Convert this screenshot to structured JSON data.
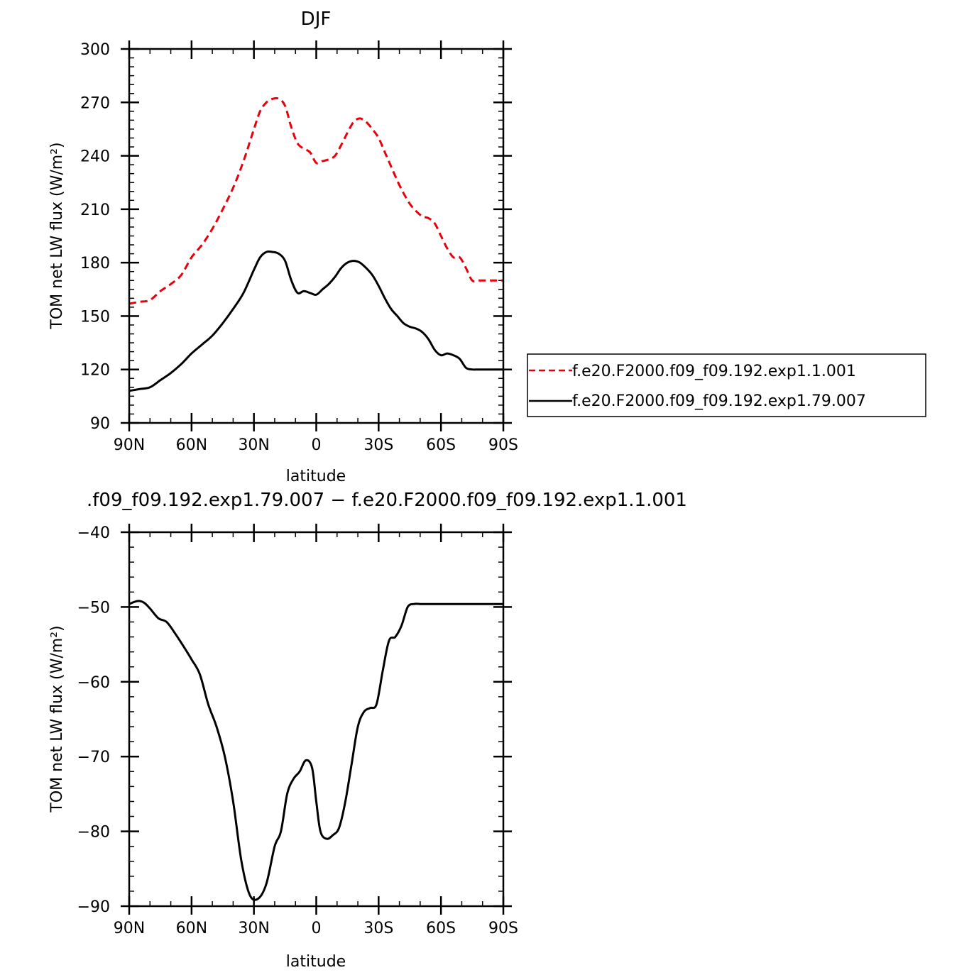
{
  "chart_data": [
    {
      "type": "line",
      "title": "DJF",
      "xlabel": "latitude",
      "ylabel": "TOM net LW flux (W/m²)",
      "xlim": [
        90,
        -90
      ],
      "ylim": [
        90,
        300
      ],
      "x_ticks": [
        90,
        60,
        30,
        0,
        -30,
        -60,
        -90
      ],
      "x_tick_labels": [
        "90N",
        "60N",
        "30N",
        "0",
        "30S",
        "60S",
        "90S"
      ],
      "y_ticks": [
        90,
        120,
        150,
        180,
        210,
        240,
        270,
        300
      ],
      "y_tick_labels": [
        "90",
        "120",
        "150",
        "180",
        "210",
        "240",
        "270",
        "300"
      ],
      "legend_position": "right",
      "series": [
        {
          "name": "f.e20.F2000.f09_f09.192.exp1.1.001",
          "color": "#e8000b",
          "dash": "dashed",
          "x": [
            90,
            85,
            80,
            75,
            70,
            65,
            60,
            55,
            50,
            45,
            40,
            35,
            30,
            27,
            24,
            21,
            18,
            15,
            12,
            9,
            6,
            3,
            0,
            -3,
            -6,
            -9,
            -12,
            -15,
            -18,
            -21,
            -24,
            -27,
            -30,
            -33,
            -36,
            -39,
            -42,
            -45,
            -48,
            -51,
            -54,
            -57,
            -60,
            -63,
            -66,
            -69,
            -72,
            -75,
            -78,
            -81,
            -84,
            -87,
            -90
          ],
          "values": [
            157,
            158,
            159,
            164,
            168,
            173,
            183,
            190,
            199,
            210,
            222,
            237,
            255,
            265,
            270,
            272,
            272,
            268,
            256,
            247,
            244,
            242,
            236,
            237,
            238,
            240,
            246,
            253,
            259,
            261,
            259,
            255,
            250,
            242,
            234,
            226,
            219,
            213,
            209,
            206,
            205,
            202,
            195,
            188,
            183,
            183,
            177,
            170,
            170,
            170,
            170,
            170,
            170
          ]
        },
        {
          "name": "f.e20.F2000.f09_f09.192.exp1.79.007",
          "color": "#000000",
          "dash": "solid",
          "x": [
            90,
            85,
            80,
            75,
            70,
            65,
            60,
            55,
            50,
            45,
            40,
            35,
            30,
            27,
            24,
            21,
            18,
            15,
            12,
            9,
            6,
            3,
            0,
            -3,
            -6,
            -9,
            -12,
            -15,
            -18,
            -21,
            -24,
            -27,
            -30,
            -33,
            -36,
            -39,
            -42,
            -45,
            -48,
            -51,
            -54,
            -57,
            -60,
            -63,
            -66,
            -69,
            -72,
            -75,
            -78,
            -81,
            -84,
            -87,
            -90
          ],
          "values": [
            108,
            109,
            110,
            114,
            118,
            123,
            129,
            134,
            139,
            146,
            154,
            163,
            176,
            183,
            186,
            186,
            185,
            181,
            170,
            163,
            164,
            163,
            162,
            165,
            168,
            172,
            177,
            180,
            181,
            180,
            177,
            173,
            167,
            160,
            154,
            150,
            146,
            144,
            143,
            141,
            137,
            131,
            128,
            129,
            128,
            126,
            121,
            120,
            120,
            120,
            120,
            120,
            120
          ]
        }
      ]
    },
    {
      "type": "line",
      "title": ".f09_f09.192.exp1.79.007 − f.e20.F2000.f09_f09.192.exp1.1.001",
      "xlabel": "latitude",
      "ylabel": "TOM net LW flux (W/m²)",
      "xlim": [
        90,
        -90
      ],
      "ylim": [
        -90,
        -40
      ],
      "x_ticks": [
        90,
        60,
        30,
        0,
        -30,
        -60,
        -90
      ],
      "x_tick_labels": [
        "90N",
        "60N",
        "30N",
        "0",
        "30S",
        "60S",
        "90S"
      ],
      "y_ticks": [
        -90,
        -80,
        -70,
        -60,
        -50,
        -40
      ],
      "y_tick_labels": [
        "−90",
        "−80",
        "−70",
        "−60",
        "−50",
        "−40"
      ],
      "series": [
        {
          "color": "#000000",
          "dash": "solid",
          "x": [
            90,
            86,
            83,
            80,
            76,
            72,
            68,
            64,
            60,
            56,
            52,
            48,
            44,
            40,
            36,
            32,
            28,
            24,
            20,
            17,
            14,
            11,
            8,
            5,
            2,
            0,
            -2,
            -5,
            -8,
            -11,
            -14,
            -17,
            -20,
            -23,
            -26,
            -29,
            -32,
            -35,
            -38,
            -41,
            -44,
            -47,
            -50,
            -53,
            -56,
            -59,
            -62,
            -65,
            -68,
            -71,
            -74,
            -77,
            -80,
            -83,
            -86,
            -88,
            -90
          ],
          "values": [
            -49.6,
            -49.2,
            -49.4,
            -50.2,
            -51.5,
            -52,
            -53.5,
            -55.2,
            -57,
            -59,
            -63,
            -66,
            -70,
            -76,
            -84,
            -88.5,
            -89,
            -87,
            -82,
            -80,
            -75,
            -73,
            -72,
            -70.5,
            -71.5,
            -76,
            -80,
            -81,
            -80.5,
            -79.5,
            -76,
            -71,
            -66,
            -64,
            -63.5,
            -63,
            -58.5,
            -54.5,
            -54,
            -52.5,
            -50,
            -49.6,
            -49.6,
            -49.6,
            -49.6,
            -49.6,
            -49.6,
            -49.6,
            -49.6,
            -49.6,
            -49.6,
            -49.6,
            -49.6,
            -49.6,
            -49.6,
            -49.6,
            -49.6
          ]
        }
      ]
    }
  ]
}
